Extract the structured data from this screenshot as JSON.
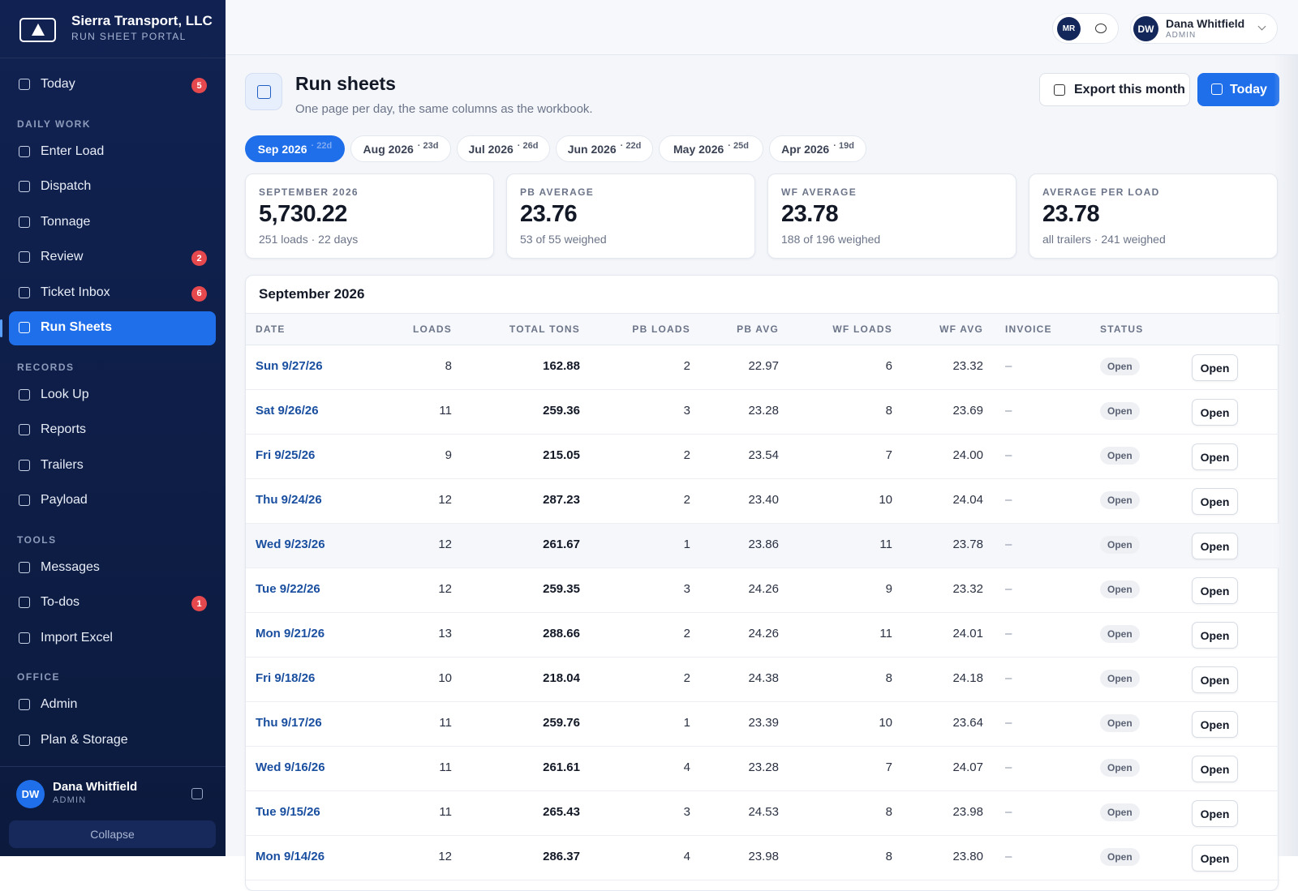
{
  "brand": {
    "name": "Sierra Transport, LLC",
    "subtitle": "RUN SHEET PORTAL"
  },
  "nav": [
    {
      "label": "Today",
      "badge": "5"
    },
    {
      "heading": "DAILY WORK"
    },
    {
      "label": "Enter Load"
    },
    {
      "label": "Dispatch"
    },
    {
      "label": "Tonnage"
    },
    {
      "label": "Review",
      "badge": "2"
    },
    {
      "label": "Ticket Inbox",
      "badge": "6"
    },
    {
      "label": "Run Sheets",
      "active": true
    },
    {
      "heading": "RECORDS"
    },
    {
      "label": "Look Up"
    },
    {
      "label": "Reports"
    },
    {
      "label": "Trailers"
    },
    {
      "label": "Payload"
    },
    {
      "heading": "TOOLS"
    },
    {
      "label": "Messages"
    },
    {
      "label": "To-dos",
      "badge": "1"
    },
    {
      "label": "Import Excel"
    },
    {
      "heading": "OFFICE"
    },
    {
      "label": "Admin"
    },
    {
      "label": "Plan & Storage"
    }
  ],
  "user": {
    "initials": "DW",
    "name": "Dana Whitfield",
    "role": "ADMIN"
  },
  "collapse": "Collapse",
  "topbar": {
    "chip": "MR"
  },
  "page": {
    "title": "Run sheets",
    "subtitle": "One page per day, the same columns as the workbook.",
    "actions": [
      "Export this month",
      "Today"
    ]
  },
  "months": [
    {
      "label": "Sep 2026",
      "days": "· 22d"
    },
    {
      "label": "Aug 2026",
      "days": "· 23d"
    },
    {
      "label": "Jul 2026",
      "days": "· 26d"
    },
    {
      "label": "Jun 2026",
      "days": "· 22d"
    },
    {
      "label": "May 2026",
      "days": "· 25d"
    },
    {
      "label": "Apr 2026",
      "days": "· 19d"
    }
  ],
  "stats": [
    {
      "label": "SEPTEMBER 2026",
      "value": "5,730.22",
      "note": "251 loads · 22 days"
    },
    {
      "label": "PB AVERAGE",
      "value": "23.76",
      "note": "53 of 55 weighed"
    },
    {
      "label": "WF AVERAGE",
      "value": "23.78",
      "note": "188 of 196 weighed"
    },
    {
      "label": "AVERAGE PER LOAD",
      "value": "23.78",
      "note": "all trailers · 241 weighed"
    }
  ],
  "table": {
    "title": "September 2026",
    "columns": [
      "DATE",
      "LOADS",
      "TOTAL TONS",
      "PB LOADS",
      "PB AVG",
      "WF LOADS",
      "WF AVG",
      "INVOICE",
      "STATUS"
    ],
    "rows": [
      [
        "Sun 9/27/26",
        "8",
        "162.88",
        "2",
        "22.97",
        "6",
        "23.32",
        "–",
        "Open",
        "Open"
      ],
      [
        "Sat 9/26/26",
        "11",
        "259.36",
        "3",
        "23.28",
        "8",
        "23.69",
        "–",
        "Open",
        "Open"
      ],
      [
        "Fri 9/25/26",
        "9",
        "215.05",
        "2",
        "23.54",
        "7",
        "24.00",
        "–",
        "Open",
        "Open"
      ],
      [
        "Thu 9/24/26",
        "12",
        "287.23",
        "2",
        "23.40",
        "10",
        "24.04",
        "–",
        "Open",
        "Open"
      ],
      [
        "Wed 9/23/26",
        "12",
        "261.67",
        "1",
        "23.86",
        "11",
        "23.78",
        "–",
        "Open",
        "Open"
      ],
      [
        "Tue 9/22/26",
        "12",
        "259.35",
        "3",
        "24.26",
        "9",
        "23.32",
        "–",
        "Open",
        "Open"
      ],
      [
        "Mon 9/21/26",
        "13",
        "288.66",
        "2",
        "24.26",
        "11",
        "24.01",
        "–",
        "Open",
        "Open"
      ],
      [
        "Fri 9/18/26",
        "10",
        "218.04",
        "2",
        "24.38",
        "8",
        "24.18",
        "–",
        "Open",
        "Open"
      ],
      [
        "Thu 9/17/26",
        "11",
        "259.76",
        "1",
        "23.39",
        "10",
        "23.64",
        "–",
        "Open",
        "Open"
      ],
      [
        "Wed 9/16/26",
        "11",
        "261.61",
        "4",
        "23.28",
        "7",
        "24.07",
        "–",
        "Open",
        "Open"
      ],
      [
        "Tue 9/15/26",
        "11",
        "265.43",
        "3",
        "24.53",
        "8",
        "23.98",
        "–",
        "Open",
        "Open"
      ],
      [
        "Mon 9/14/26",
        "12",
        "286.37",
        "4",
        "23.98",
        "8",
        "23.80",
        "–",
        "Open",
        "Open"
      ]
    ]
  }
}
